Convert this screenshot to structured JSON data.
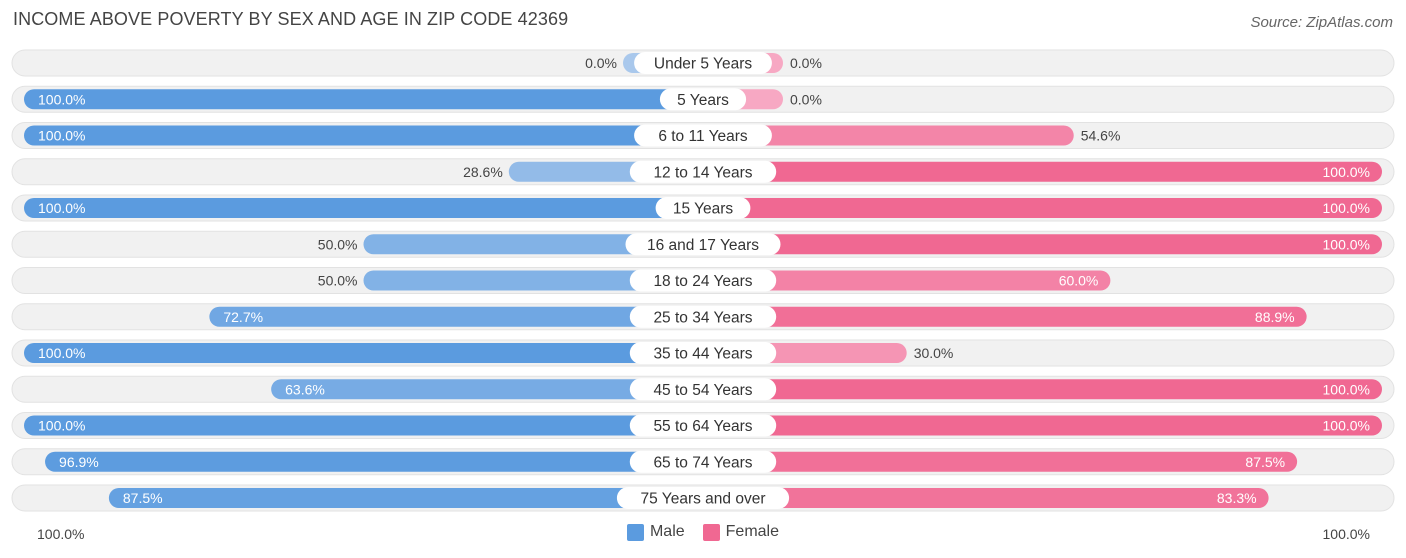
{
  "title": "INCOME ABOVE POVERTY BY SEX AND AGE IN ZIP CODE 42369",
  "source": "Source: ZipAtlas.com",
  "axis": {
    "left_label": "100.0%",
    "right_label": "100.0%"
  },
  "legend": {
    "male": "Male",
    "female": "Female"
  },
  "colors": {
    "male_strong": "#5b9bdf",
    "male_light": "#a9c8ec",
    "female_strong": "#f06892",
    "female_light": "#f7a8c3",
    "row_bg": "#f1f1f1"
  },
  "chart_data": {
    "type": "bar",
    "orientation": "horizontal-diverging",
    "title": "INCOME ABOVE POVERTY BY SEX AND AGE IN ZIP CODE 42369",
    "xlim": [
      -100,
      100
    ],
    "categories": [
      "Under 5 Years",
      "5 Years",
      "6 to 11 Years",
      "12 to 14 Years",
      "15 Years",
      "16 and 17 Years",
      "18 to 24 Years",
      "25 to 34 Years",
      "35 to 44 Years",
      "45 to 54 Years",
      "55 to 64 Years",
      "65 to 74 Years",
      "75 Years and over"
    ],
    "series": [
      {
        "name": "Male",
        "values": [
          0.0,
          100.0,
          100.0,
          28.6,
          100.0,
          50.0,
          50.0,
          72.7,
          100.0,
          63.6,
          100.0,
          96.9,
          87.5
        ]
      },
      {
        "name": "Female",
        "values": [
          0.0,
          0.0,
          54.6,
          100.0,
          100.0,
          100.0,
          60.0,
          88.9,
          30.0,
          100.0,
          100.0,
          87.5,
          83.3
        ]
      }
    ],
    "value_labels": {
      "male": [
        "0.0%",
        "100.0%",
        "100.0%",
        "28.6%",
        "100.0%",
        "50.0%",
        "50.0%",
        "72.7%",
        "100.0%",
        "63.6%",
        "100.0%",
        "96.9%",
        "87.5%"
      ],
      "female": [
        "0.0%",
        "0.0%",
        "54.6%",
        "100.0%",
        "100.0%",
        "100.0%",
        "60.0%",
        "88.9%",
        "30.0%",
        "100.0%",
        "100.0%",
        "87.5%",
        "83.3%"
      ]
    },
    "legend_position": "bottom-center"
  }
}
